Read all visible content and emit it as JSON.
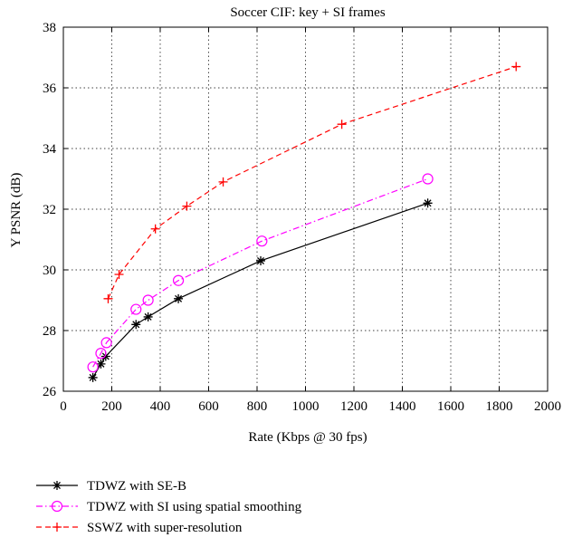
{
  "chart_data": {
    "type": "line",
    "title": "Soccer CIF: key + SI frames",
    "xlabel": "Rate (Kbps @ 30 fps)",
    "ylabel": "Y PSNR (dB)",
    "xlim": [
      0,
      2000
    ],
    "ylim": [
      26,
      38
    ],
    "xticks": [
      0,
      200,
      400,
      600,
      800,
      1000,
      1200,
      1400,
      1600,
      1800,
      2000
    ],
    "yticks": [
      26,
      28,
      30,
      32,
      34,
      36,
      38
    ],
    "grid": true,
    "grid_style": "dotted",
    "legend_placement": "below",
    "series": [
      {
        "name": "TDWZ with SE-B",
        "color": "#000000",
        "line_style": "solid",
        "marker": "asterisk",
        "x": [
          122,
          155,
          175,
          300,
          350,
          475,
          815,
          1505
        ],
        "y": [
          26.45,
          26.9,
          27.15,
          28.2,
          28.45,
          29.05,
          30.3,
          32.2
        ]
      },
      {
        "name": "TDWZ with SI using spatial smoothing",
        "color": "#ff00ff",
        "line_style": "dashdot",
        "marker": "circle",
        "x": [
          122,
          155,
          178,
          300,
          350,
          475,
          820,
          1505
        ],
        "y": [
          26.8,
          27.25,
          27.6,
          28.7,
          29.0,
          29.65,
          30.95,
          33.0
        ]
      },
      {
        "name": "SSWZ with super-resolution",
        "color": "#ff0000",
        "line_style": "dashed",
        "marker": "plus",
        "x": [
          185,
          230,
          380,
          510,
          660,
          1150,
          1870
        ],
        "y": [
          29.05,
          29.85,
          31.35,
          32.1,
          32.9,
          34.8,
          36.7
        ]
      }
    ]
  }
}
